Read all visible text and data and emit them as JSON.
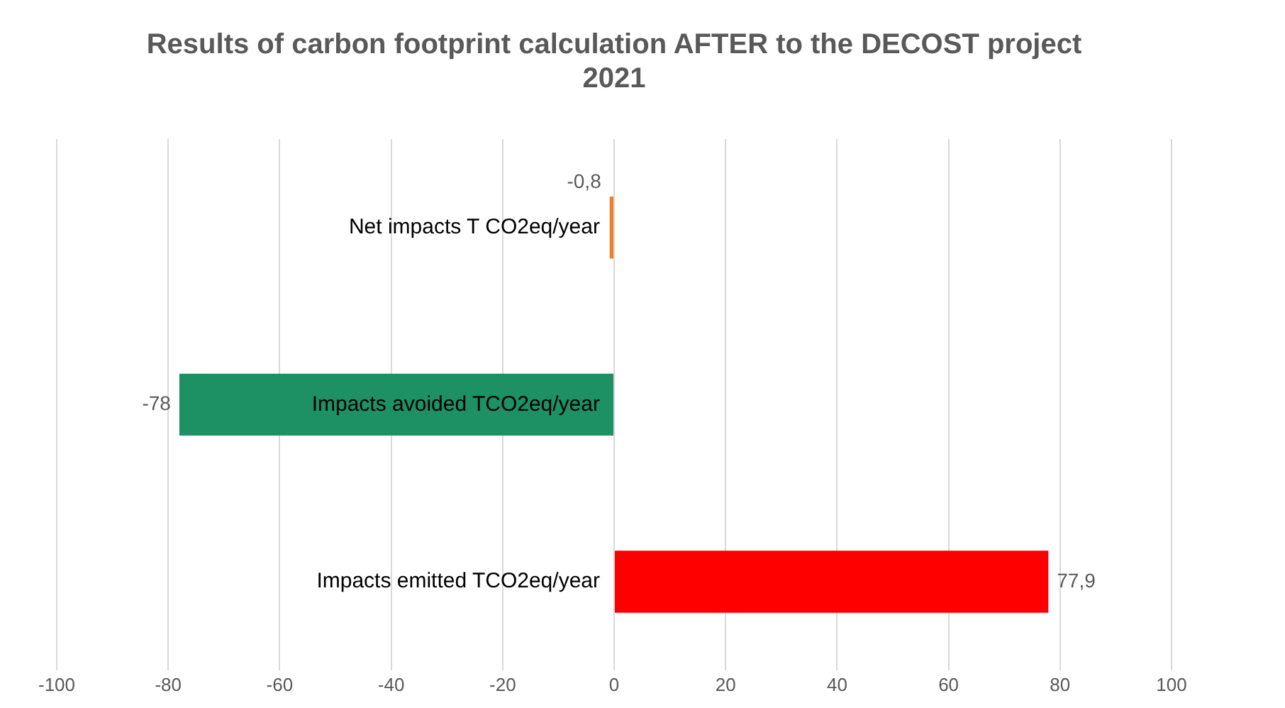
{
  "chart_data": {
    "type": "bar",
    "orientation": "horizontal",
    "title": "Results of carbon footprint calculation AFTER to the DECOST project\n2021",
    "categories": [
      "Net impacts T CO2eq/year",
      "Impacts avoided TCO2eq/year",
      "Impacts emitted TCO2eq/year"
    ],
    "values": [
      -0.8,
      -78,
      77.9
    ],
    "colors": [
      "#ed7d31",
      "#1e9164",
      "#ff0000"
    ],
    "value_labels": [
      "-0,8",
      "-78",
      "77,9"
    ],
    "xlim": [
      -100,
      100
    ],
    "xticks": [
      -100,
      -80,
      -60,
      -40,
      -20,
      0,
      20,
      40,
      60,
      80,
      100
    ],
    "grid": "x",
    "legend": false
  }
}
